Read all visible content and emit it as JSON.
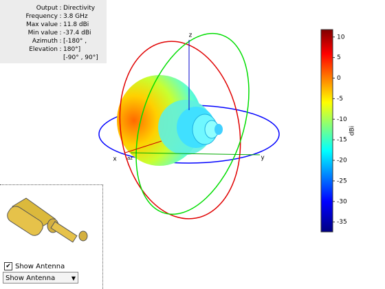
{
  "info": [
    {
      "label": "Output",
      "value": "Directivity"
    },
    {
      "label": "Frequency",
      "value": "3.8 GHz"
    },
    {
      "label": "Max value",
      "value": "11.8 dBi"
    },
    {
      "label": "Min value",
      "value": "-37.4 dBi"
    },
    {
      "label": "Azimuth",
      "value": "[-180° ,"
    },
    {
      "label": "Elevation",
      "value": "180°]"
    },
    {
      "label": "",
      "value": "[-90° , 90°]"
    }
  ],
  "axes": {
    "x": "x",
    "y": "y",
    "z": "z",
    "az": "az"
  },
  "colorbar": {
    "label": "dBi",
    "lim": [
      -37.4,
      11.8
    ],
    "ticks": [
      10,
      5,
      0,
      -5,
      -10,
      -15,
      -20,
      -25,
      -30,
      -35
    ]
  },
  "checkbox": {
    "label": "Show Antenna",
    "checked": true
  },
  "dropdown": {
    "value": "Show Antenna"
  }
}
